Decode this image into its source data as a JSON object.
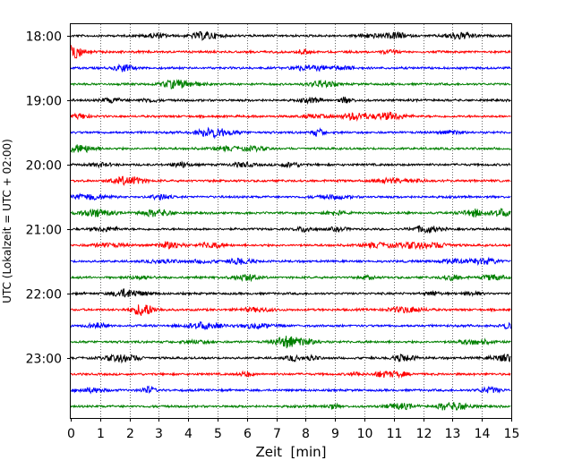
{
  "chart_data": {
    "type": "line",
    "title": "",
    "xlabel": "Zeit  [min]",
    "ylabel": "UTC (Lokalzeit = UTC + 02:00)",
    "xlim": [
      0,
      15
    ],
    "x_ticks": [
      "0",
      "1",
      "2",
      "3",
      "4",
      "5",
      "6",
      "7",
      "8",
      "9",
      "10",
      "11",
      "12",
      "13",
      "14",
      "15"
    ],
    "y_tick_labels": [
      "18:00",
      "19:00",
      "20:00",
      "21:00",
      "22:00",
      "23:00"
    ],
    "trace_interval_minutes": 15,
    "grid_x": true,
    "series_colors": [
      "#000000",
      "#ff0000",
      "#0000ff",
      "#008000"
    ],
    "traces": [
      {
        "start": "18:00",
        "color": "#000000"
      },
      {
        "start": "18:15",
        "color": "#ff0000"
      },
      {
        "start": "18:30",
        "color": "#0000ff"
      },
      {
        "start": "18:45",
        "color": "#008000"
      },
      {
        "start": "19:00",
        "color": "#000000"
      },
      {
        "start": "19:15",
        "color": "#ff0000"
      },
      {
        "start": "19:30",
        "color": "#0000ff"
      },
      {
        "start": "19:45",
        "color": "#008000"
      },
      {
        "start": "20:00",
        "color": "#000000"
      },
      {
        "start": "20:15",
        "color": "#ff0000"
      },
      {
        "start": "20:30",
        "color": "#0000ff"
      },
      {
        "start": "20:45",
        "color": "#008000"
      },
      {
        "start": "21:00",
        "color": "#000000"
      },
      {
        "start": "21:15",
        "color": "#ff0000"
      },
      {
        "start": "21:30",
        "color": "#0000ff"
      },
      {
        "start": "21:45",
        "color": "#008000"
      },
      {
        "start": "22:00",
        "color": "#000000"
      },
      {
        "start": "22:15",
        "color": "#ff0000"
      },
      {
        "start": "22:30",
        "color": "#0000ff"
      },
      {
        "start": "22:45",
        "color": "#008000"
      },
      {
        "start": "23:00",
        "color": "#000000"
      },
      {
        "start": "23:15",
        "color": "#ff0000"
      },
      {
        "start": "23:30",
        "color": "#0000ff"
      },
      {
        "start": "23:45",
        "color": "#008000"
      }
    ]
  }
}
